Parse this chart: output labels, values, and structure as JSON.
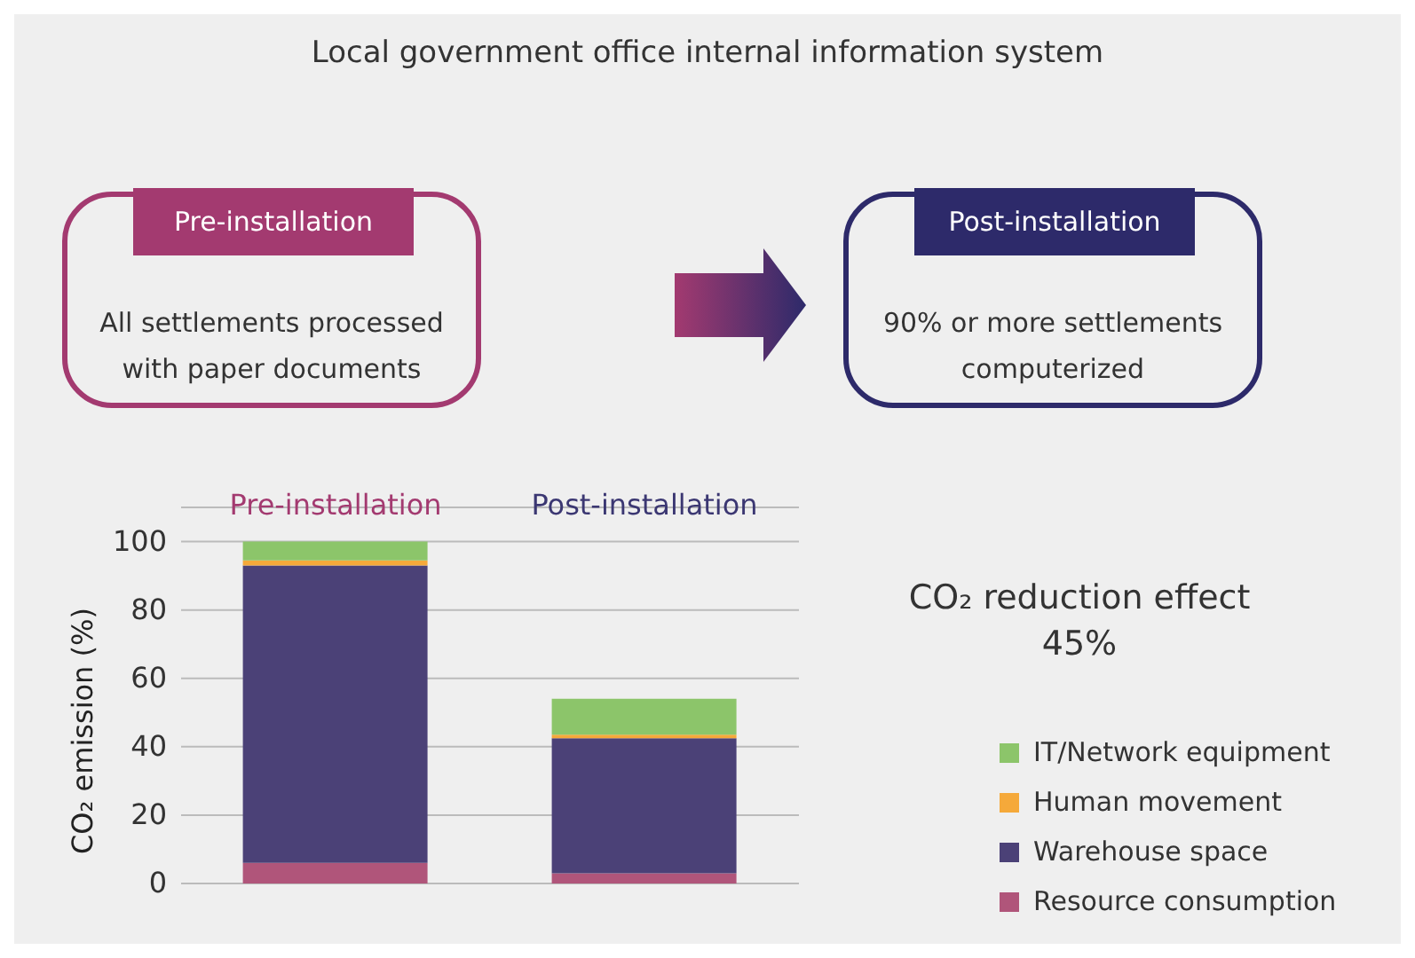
{
  "chart_data": {
    "type": "bar",
    "title": "Local government office internal information system",
    "annotations": [
      "Pre-installation",
      "All settlements processed with paper documents",
      "Post-installation",
      "90% or more settlements computerized",
      "CO₂ reduction effect\n45%"
    ],
    "categories": [
      "Pre-installation",
      "Post-installation"
    ],
    "stacked": true,
    "series": [
      {
        "name": "Resource consumption",
        "color": "#b0557a",
        "values": [
          6,
          3
        ]
      },
      {
        "name": "Warehouse space",
        "color": "#4b4177",
        "values": [
          87,
          39.5
        ]
      },
      {
        "name": "Human movement",
        "color": "#f5a93a",
        "values": [
          1.5,
          1
        ]
      },
      {
        "name": "IT/Network equipment",
        "color": "#8cc56a",
        "values": [
          5.5,
          10.5
        ]
      }
    ],
    "ylabel": "CO₂ emission (%)",
    "ylim": [
      0,
      110
    ],
    "yticks": [
      0,
      20,
      40,
      60,
      80,
      100
    ],
    "grid": "y",
    "legend": "right"
  }
}
